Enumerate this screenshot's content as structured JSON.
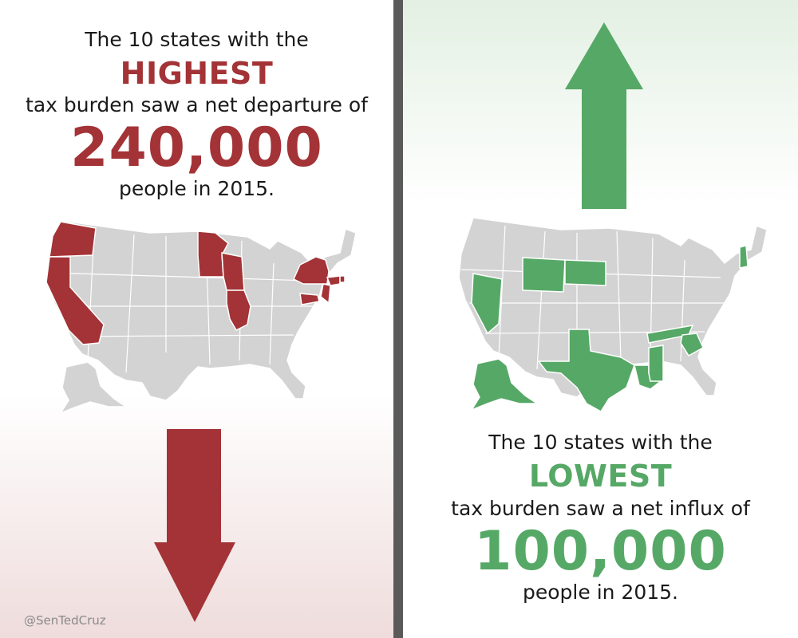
{
  "left": {
    "line1": "The 10 states with the",
    "highlight": "HIGHEST",
    "line2": "tax burden saw a net departure of",
    "number": "240,000",
    "line3": "people in 2015.",
    "accent_color": "#a33336",
    "map_icon": "us-states-map-icon",
    "arrow_icon": "down-arrow-icon"
  },
  "right": {
    "line1": "The 10 states with the",
    "highlight": "LOWEST",
    "line2": "tax burden saw a net influx of",
    "number": "100,000",
    "line3": "people in 2015.",
    "accent_color": "#56a866",
    "map_icon": "us-states-map-icon",
    "arrow_icon": "up-arrow-icon"
  },
  "credit": "@SenTedCruz",
  "base_map_color": "#d3d3d3",
  "divider_color": "#5a5a5a"
}
